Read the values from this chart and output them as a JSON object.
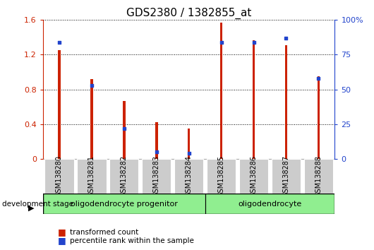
{
  "title": "GDS2380 / 1382855_at",
  "categories": [
    "GSM138280",
    "GSM138281",
    "GSM138282",
    "GSM138283",
    "GSM138284",
    "GSM138285",
    "GSM138286",
    "GSM138287",
    "GSM138288"
  ],
  "transformed_count": [
    1.25,
    0.92,
    0.67,
    0.42,
    0.35,
    1.57,
    1.37,
    1.31,
    0.95
  ],
  "percentile_rank_pct": [
    84,
    53,
    22,
    5,
    4,
    84,
    84,
    87,
    58
  ],
  "bar_color": "#cc2200",
  "dot_color": "#2244cc",
  "ylim_left": [
    0,
    1.6
  ],
  "ylim_right": [
    0,
    100
  ],
  "yticks_left": [
    0,
    0.4,
    0.8,
    1.2,
    1.6
  ],
  "yticks_right": [
    0,
    25,
    50,
    75,
    100
  ],
  "ytick_labels_left": [
    "0",
    "0.4",
    "0.8",
    "1.2",
    "1.6"
  ],
  "ytick_labels_right": [
    "0",
    "25",
    "50",
    "75",
    "100%"
  ],
  "group1_label": "oligodendrocyte progenitor",
  "group2_label": "oligodendrocyte",
  "group1_count": 5,
  "group2_count": 4,
  "dev_stage_label": "development stage",
  "legend_bar_label": "transformed count",
  "legend_dot_label": "percentile rank within the sample",
  "group_color": "#90ee90",
  "title_fontsize": 11,
  "tick_fontsize": 8,
  "label_fontsize": 7,
  "axis_color_left": "#cc2200",
  "axis_color_right": "#2244cc",
  "bar_width": 0.08
}
